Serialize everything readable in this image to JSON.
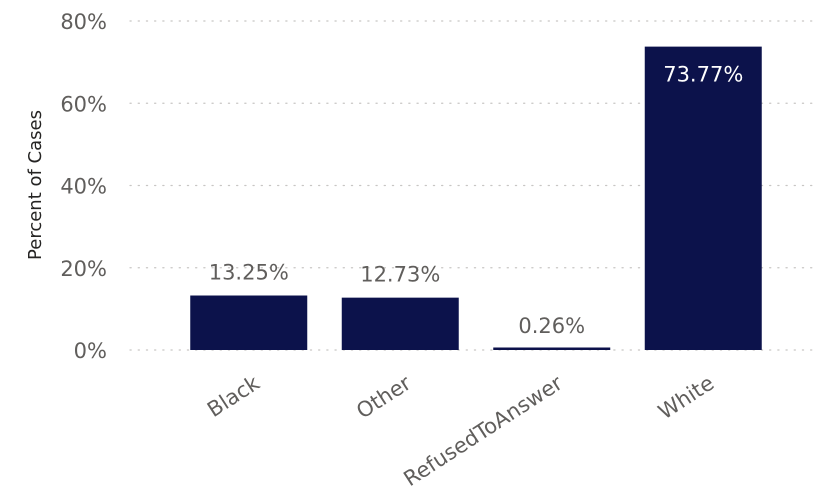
{
  "chart_data": {
    "type": "bar",
    "ylabel": "Percent of Cases",
    "xlabel": "",
    "categories": [
      "Black",
      "Other",
      "RefusedToAnswer",
      "White"
    ],
    "values": [
      13.25,
      12.73,
      0.26,
      73.77
    ],
    "data_labels": [
      "13.25%",
      "12.73%",
      "0.26%",
      "73.77%"
    ],
    "ylim": [
      0,
      80
    ],
    "yticks": [
      0,
      20,
      40,
      60,
      80
    ],
    "ytick_labels": [
      "0%",
      "20%",
      "40%",
      "60%",
      "80%"
    ],
    "grid": "horizontal dotted",
    "legend": "none"
  },
  "colors": {
    "bar": "#0c124b",
    "axis_text": "#605e5c",
    "ylabel_text": "#252423",
    "grid": "#c8c6c4",
    "label_outside": "#605e5c",
    "label_inside": "#ffffff"
  }
}
